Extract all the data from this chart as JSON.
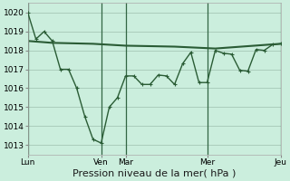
{
  "bg_color": "#cbeedd",
  "grid_color": "#aaccbb",
  "line_color": "#2a5c35",
  "xlabel": "Pression niveau de la mer( hPa )",
  "xlabel_fontsize": 8,
  "ylim": [
    1012.5,
    1020.5
  ],
  "yticks": [
    1013,
    1014,
    1015,
    1016,
    1017,
    1018,
    1019,
    1020
  ],
  "xtick_labels": [
    "Lun",
    "Ven",
    "Mar",
    "Mer",
    "Jeu"
  ],
  "line1_x": [
    0,
    1,
    2,
    3,
    4,
    5,
    6,
    7,
    8,
    9,
    10,
    11,
    12,
    13,
    14,
    15,
    16,
    17,
    18,
    19,
    20,
    21,
    22,
    23,
    24,
    25,
    26,
    27,
    28,
    29,
    30,
    31
  ],
  "line1_y": [
    1020.0,
    1018.6,
    1019.0,
    1018.5,
    1017.0,
    1017.0,
    1016.0,
    1014.5,
    1013.3,
    1013.1,
    1015.0,
    1015.5,
    1016.65,
    1016.65,
    1016.2,
    1016.2,
    1016.7,
    1016.65,
    1016.2,
    1017.3,
    1017.9,
    1016.3,
    1016.3,
    1018.0,
    1017.85,
    1017.8,
    1016.95,
    1016.9,
    1018.05,
    1018.0,
    1018.3,
    1018.35
  ],
  "line2_x": [
    0,
    3,
    8,
    12,
    18,
    23,
    31
  ],
  "line2_y": [
    1018.5,
    1018.4,
    1018.35,
    1018.25,
    1018.2,
    1018.1,
    1018.35
  ],
  "marker_style": "+",
  "marker_size": 3.5,
  "linewidth": 1.0,
  "trend_linewidth": 1.5,
  "tick_fontsize": 6.5
}
